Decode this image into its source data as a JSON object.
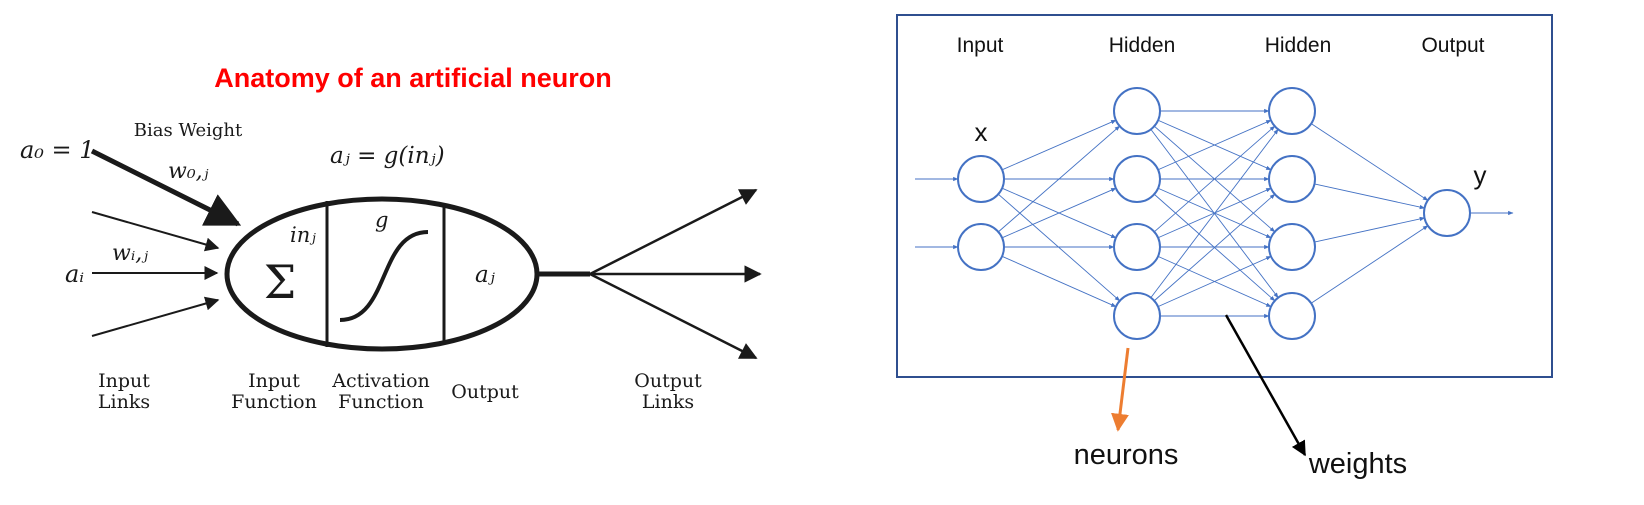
{
  "colors": {
    "title": "#ff0000",
    "ink": "#1a1a1a",
    "net": "#4472c4",
    "frame": "#2f4f8f",
    "neurons_arrow": "#ed7d31",
    "weights_arrow": "#000000"
  },
  "left_diagram": {
    "title": "Anatomy of an artificial neuron",
    "bias_weight_label": "Bias Weight",
    "a0_eq": "a₀ = 1",
    "w0j": "w₀,ⱼ",
    "aj_eq": "aⱼ = g(inⱼ)",
    "wij": "wᵢ,ⱼ",
    "ai": "aᵢ",
    "sigma": "Σ",
    "in_j": "inⱼ",
    "g": "g",
    "a_j": "aⱼ",
    "captions": {
      "input_links_1": "Input",
      "input_links_2": "Links",
      "input_function_1": "Input",
      "input_function_2": "Function",
      "activation_function_1": "Activation",
      "activation_function_2": "Function",
      "output": "Output",
      "output_links_1": "Output",
      "output_links_2": "Links"
    }
  },
  "right_diagram": {
    "layer_labels": [
      "Input",
      "Hidden",
      "Hidden",
      "Output"
    ],
    "x_label": "x",
    "y_label": "y",
    "neurons_label": "neurons",
    "weights_label": "weights",
    "layer_sizes": [
      2,
      4,
      4,
      1
    ]
  }
}
